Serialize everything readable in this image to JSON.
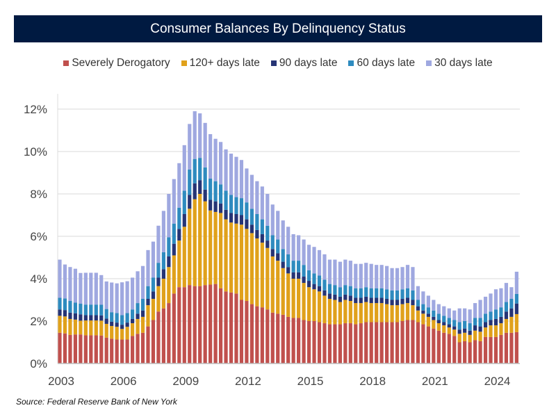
{
  "header": {
    "title": "Consumer Balances By Delinquency Status"
  },
  "source": "Source: Federal Reserve Bank of New York",
  "chart_data": {
    "type": "bar",
    "stacked": true,
    "title": "Consumer Balances By Delinquency Status",
    "xlabel": "",
    "ylabel": "",
    "ylim": [
      0,
      12.5
    ],
    "yticks": [
      0,
      2,
      4,
      6,
      8,
      10,
      12
    ],
    "ytick_labels": [
      "0%",
      "2%",
      "4%",
      "6%",
      "8%",
      "10%",
      "12%"
    ],
    "xtick_labels": [
      "2003",
      "2006",
      "2009",
      "2012",
      "2015",
      "2018",
      "2021",
      "2024"
    ],
    "xtick_years": [
      2003,
      2006,
      2009,
      2012,
      2015,
      2018,
      2021,
      2024
    ],
    "start": "2003Q1",
    "grid": true,
    "legend_position": "top-center",
    "colors": {
      "Severely Derogatory": "#c0504d",
      "120+ days late": "#e0a11b",
      "90 days late": "#263475",
      "60 days late": "#2e8bbf",
      "30 days late": "#9fa8e0"
    },
    "series": [
      {
        "name": "Severely Derogatory",
        "values": [
          1.45,
          1.42,
          1.35,
          1.37,
          1.37,
          1.33,
          1.33,
          1.33,
          1.32,
          1.22,
          1.17,
          1.13,
          1.13,
          1.13,
          1.3,
          1.4,
          1.45,
          1.75,
          2.05,
          2.45,
          2.6,
          2.85,
          3.3,
          3.6,
          3.6,
          3.7,
          3.65,
          3.65,
          3.7,
          3.72,
          3.75,
          3.55,
          3.4,
          3.35,
          3.3,
          3.0,
          2.95,
          2.8,
          2.7,
          2.65,
          2.55,
          2.4,
          2.35,
          2.3,
          2.2,
          2.15,
          2.15,
          2.05,
          2.0,
          2.0,
          1.95,
          1.9,
          1.85,
          1.85,
          1.85,
          1.9,
          1.9,
          1.85,
          1.9,
          1.95,
          1.95,
          1.95,
          1.95,
          1.95,
          1.95,
          1.95,
          2.0,
          2.05,
          2.05,
          1.95,
          1.85,
          1.75,
          1.65,
          1.55,
          1.45,
          1.4,
          1.3,
          1.0,
          1.05,
          1.0,
          1.1,
          1.05,
          1.25,
          1.25,
          1.25,
          1.35,
          1.45,
          1.45,
          1.48
        ]
      },
      {
        "name": "120+ days late",
        "values": [
          0.8,
          0.8,
          0.75,
          0.7,
          0.65,
          0.7,
          0.7,
          0.7,
          0.7,
          0.65,
          0.6,
          0.6,
          0.5,
          0.6,
          0.6,
          0.7,
          0.75,
          1.0,
          1.0,
          1.2,
          1.4,
          1.7,
          1.8,
          2.2,
          2.85,
          3.6,
          4.1,
          4.35,
          3.95,
          3.5,
          3.4,
          3.55,
          3.4,
          3.3,
          3.3,
          3.55,
          3.4,
          3.35,
          3.2,
          3.05,
          2.9,
          2.65,
          2.5,
          2.2,
          2.05,
          1.85,
          1.85,
          1.75,
          1.6,
          1.5,
          1.45,
          1.3,
          1.2,
          1.15,
          1.05,
          1.1,
          1.05,
          1.0,
          0.95,
          0.95,
          0.9,
          0.9,
          0.9,
          0.85,
          0.8,
          0.8,
          0.8,
          0.8,
          0.7,
          0.55,
          0.5,
          0.45,
          0.4,
          0.35,
          0.35,
          0.3,
          0.3,
          0.4,
          0.4,
          0.35,
          0.45,
          0.45,
          0.45,
          0.55,
          0.55,
          0.55,
          0.65,
          0.75,
          0.85
        ]
      },
      {
        "name": "90 days late",
        "values": [
          0.3,
          0.3,
          0.3,
          0.3,
          0.3,
          0.25,
          0.25,
          0.25,
          0.25,
          0.25,
          0.2,
          0.2,
          0.2,
          0.2,
          0.2,
          0.25,
          0.3,
          0.3,
          0.35,
          0.4,
          0.45,
          0.5,
          0.55,
          0.55,
          0.6,
          0.65,
          0.75,
          0.65,
          0.55,
          0.5,
          0.5,
          0.45,
          0.45,
          0.45,
          0.45,
          0.45,
          0.45,
          0.4,
          0.4,
          0.4,
          0.35,
          0.35,
          0.35,
          0.3,
          0.3,
          0.3,
          0.3,
          0.3,
          0.3,
          0.25,
          0.25,
          0.25,
          0.25,
          0.25,
          0.25,
          0.25,
          0.25,
          0.25,
          0.25,
          0.25,
          0.25,
          0.25,
          0.25,
          0.25,
          0.25,
          0.25,
          0.25,
          0.25,
          0.25,
          0.2,
          0.15,
          0.15,
          0.15,
          0.15,
          0.15,
          0.15,
          0.15,
          0.2,
          0.2,
          0.2,
          0.25,
          0.25,
          0.25,
          0.25,
          0.3,
          0.3,
          0.35,
          0.4,
          0.5
        ]
      },
      {
        "name": "60 days late",
        "values": [
          0.55,
          0.55,
          0.55,
          0.5,
          0.5,
          0.5,
          0.5,
          0.5,
          0.5,
          0.45,
          0.45,
          0.45,
          0.45,
          0.45,
          0.45,
          0.5,
          0.55,
          0.6,
          0.65,
          0.7,
          0.8,
          0.9,
          0.95,
          1.0,
          1.1,
          1.2,
          1.15,
          1.05,
          1.05,
          1.0,
          0.95,
          0.9,
          0.9,
          0.85,
          0.8,
          0.8,
          0.8,
          0.75,
          0.75,
          0.7,
          0.7,
          0.65,
          0.65,
          0.6,
          0.6,
          0.55,
          0.55,
          0.55,
          0.5,
          0.5,
          0.5,
          0.5,
          0.45,
          0.45,
          0.45,
          0.45,
          0.45,
          0.45,
          0.45,
          0.45,
          0.45,
          0.45,
          0.45,
          0.45,
          0.45,
          0.45,
          0.45,
          0.45,
          0.45,
          0.3,
          0.3,
          0.3,
          0.3,
          0.3,
          0.3,
          0.3,
          0.3,
          0.35,
          0.35,
          0.35,
          0.35,
          0.4,
          0.4,
          0.4,
          0.45,
          0.45,
          0.45,
          0.45,
          0.45
        ]
      },
      {
        "name": "30 days late",
        "values": [
          1.8,
          1.6,
          1.6,
          1.6,
          1.45,
          1.5,
          1.5,
          1.5,
          1.4,
          1.3,
          1.4,
          1.4,
          1.55,
          1.5,
          1.5,
          1.5,
          1.55,
          1.7,
          1.7,
          1.75,
          1.95,
          2.05,
          2.1,
          2.1,
          2.15,
          2.15,
          2.25,
          2.1,
          2.1,
          2.1,
          2.0,
          2.0,
          1.95,
          1.95,
          1.9,
          1.8,
          1.6,
          1.6,
          1.55,
          1.55,
          1.5,
          1.45,
          1.35,
          1.35,
          1.3,
          1.25,
          1.2,
          1.2,
          1.2,
          1.25,
          1.2,
          1.2,
          1.15,
          1.2,
          1.2,
          1.2,
          1.2,
          1.15,
          1.15,
          1.15,
          1.15,
          1.1,
          1.1,
          1.1,
          1.05,
          1.05,
          1.05,
          1.1,
          1.1,
          0.65,
          0.6,
          0.55,
          0.5,
          0.45,
          0.45,
          0.45,
          0.45,
          0.65,
          0.6,
          0.65,
          0.7,
          0.85,
          0.8,
          0.85,
          0.95,
          0.9,
          0.9,
          0.55,
          1.05
        ]
      }
    ]
  }
}
